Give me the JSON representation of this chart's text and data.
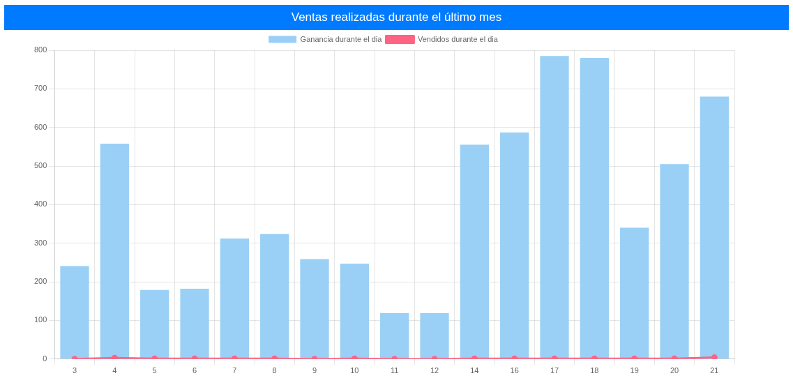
{
  "chart_data": {
    "type": "bar",
    "title": "Ventas realizadas durante el último mes",
    "categories": [
      "3",
      "4",
      "5",
      "6",
      "7",
      "8",
      "9",
      "10",
      "11",
      "12",
      "14",
      "16",
      "17",
      "18",
      "19",
      "20",
      "21"
    ],
    "series": [
      {
        "name": "Ganancia durante el dia",
        "color": "#9ad0f5",
        "values": [
          241,
          558,
          179,
          182,
          312,
          324,
          259,
          247,
          119,
          119,
          555,
          587,
          785,
          780,
          340,
          505,
          680
        ]
      },
      {
        "name": "Vendidos durante el dia",
        "type": "line",
        "color": "#ff6384",
        "values": [
          0,
          3,
          1,
          1,
          1,
          1,
          0,
          1,
          0,
          0,
          1,
          1,
          1,
          1,
          1,
          1,
          4
        ]
      }
    ],
    "ylim": [
      0,
      800
    ],
    "yticks": [
      0,
      100,
      200,
      300,
      400,
      500,
      600,
      700,
      800
    ],
    "grid": true,
    "legend": "top",
    "marker": "circle"
  }
}
